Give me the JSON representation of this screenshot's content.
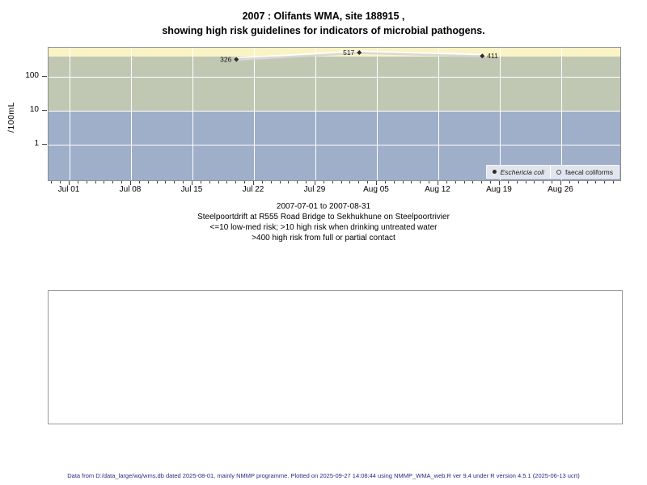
{
  "title": {
    "line1": "2007 : Olifants WMA, site 188915 ,",
    "line2": "showing high risk guidelines for indicators of microbial pathogens."
  },
  "chart_data": {
    "type": "scatter",
    "ylabel": "/100mL",
    "y_scale": "log",
    "y_range": [
      0.08,
      720
    ],
    "x_range_days": [
      -2.4,
      62.9
    ],
    "grid": true,
    "y_ticks": [
      {
        "value": 100,
        "label": "100"
      },
      {
        "value": 10,
        "label": "10"
      },
      {
        "value": 1,
        "label": "1"
      }
    ],
    "x_ticks": [
      {
        "day": 0,
        "label": "Jul 01"
      },
      {
        "day": 7,
        "label": "Jul 08"
      },
      {
        "day": 14,
        "label": "Jul 15"
      },
      {
        "day": 21,
        "label": "Jul 22"
      },
      {
        "day": 28,
        "label": "Jul 29"
      },
      {
        "day": 35,
        "label": "Aug 05"
      },
      {
        "day": 42,
        "label": "Aug 12"
      },
      {
        "day": 49,
        "label": "Aug 19"
      },
      {
        "day": 56,
        "label": "Aug 26"
      }
    ],
    "minor_tick_day_range": [
      -2,
      62
    ],
    "bands": [
      {
        "name": "band-high-risk-contact",
        "from": 400,
        "to": 720,
        "color": "#FAF3C5"
      },
      {
        "name": "band-high-risk-drinking",
        "from": 10,
        "to": 400,
        "color": "#C0C8B4"
      },
      {
        "name": "band-low-med-risk",
        "from": 0.08,
        "to": 10,
        "color": "#9FAFC9"
      }
    ],
    "series": [
      {
        "name": "Eschericia coli",
        "marker": "filled-diamond",
        "marker_color": "#2b2b2b",
        "line_colors": [
          "#D8D8D8",
          "#FFFFFF"
        ],
        "points": [
          {
            "date": "2007-07-20",
            "day": 19,
            "value": 326,
            "label": "326",
            "label_side": "left"
          },
          {
            "date": "2007-08-03",
            "day": 33,
            "value": 517,
            "label": "517",
            "label_side": "left"
          },
          {
            "date": "2007-08-17",
            "day": 47,
            "value": 411,
            "label": "411",
            "label_side": "right"
          }
        ]
      },
      {
        "name": "faecal coliforms",
        "marker": "open-circle",
        "points": []
      }
    ],
    "legend": {
      "position": "inside-bottom-right",
      "items": [
        {
          "label": "Eschericia coli",
          "italic": true,
          "marker": "filled-dot"
        },
        {
          "label": "faecal coliforms",
          "italic": false,
          "marker": "open-circle"
        }
      ]
    }
  },
  "subtitle_lines": [
    "2007-07-01 to 2007-08-31",
    "Steelpoortdrift at R555 Road Bridge to Sekhukhune on Steelpoortrivier",
    "<=10 low-med risk; >10 high risk when drinking untreated water",
    ">400 high risk from full or partial contact"
  ],
  "footer": {
    "text": "Data from D:/data_large/wq/wms.db dated 2025-08-01, mainly NMMP programme. Plotted on 2025-09-27 14:08:44 using NMMP_WMA_web.R ver 9.4 under R version 4.5.1 (2025-06-13 ucrt)"
  },
  "colors": {
    "band_yellow": "#FAF3C5",
    "band_green": "#C0C8B4",
    "band_blue": "#9FAFC9",
    "gridline": "#FFFFFF",
    "plot_border": "#8F8F8F",
    "marker": "#2b2b2b",
    "legend_bg": "#E2E5EE",
    "footer_text": "#2A2A85"
  }
}
